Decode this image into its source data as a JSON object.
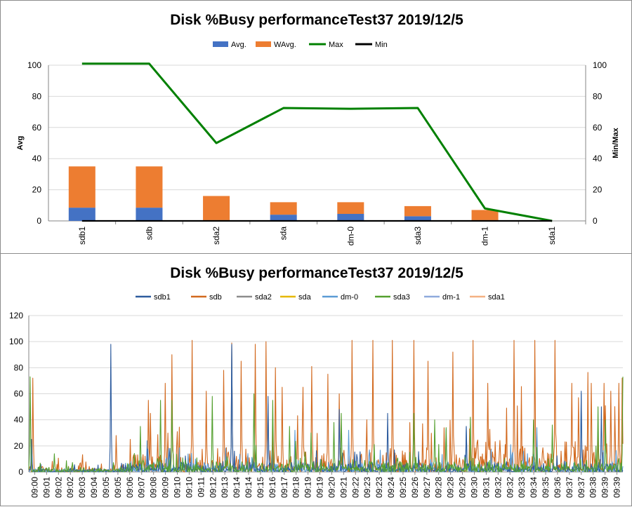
{
  "chart_data": [
    {
      "type": "bar",
      "title": "Disk %Busy performanceTest37  2019/12/5",
      "ylabel": "Avg",
      "y2label": "Min/Max",
      "ylim": [
        0,
        100
      ],
      "y2lim": [
        0,
        100
      ],
      "yticks": [
        "0",
        "20",
        "40",
        "60",
        "80",
        "100"
      ],
      "y2ticks": [
        "0",
        "20",
        "40",
        "60",
        "80",
        "100"
      ],
      "grid": true,
      "legend_position": "top",
      "categories": [
        "sdb1",
        "sdb",
        "sda2",
        "sda",
        "dm-0",
        "sda3",
        "dm-1",
        "sda1"
      ],
      "series": [
        {
          "name": "Avg.",
          "kind": "stacked-bar",
          "color": "#4472C4",
          "values": [
            8.5,
            8.5,
            0.5,
            4,
            4.5,
            3,
            0.5,
            0
          ]
        },
        {
          "name": "WAvg.",
          "kind": "stacked-bar",
          "color": "#ED7D31",
          "values": [
            26.5,
            26.5,
            15.5,
            8,
            7.5,
            6.5,
            6.5,
            0
          ]
        },
        {
          "name": "Max",
          "kind": "line",
          "axis": "secondary",
          "color": "#008000",
          "values": [
            101,
            101,
            50,
            72.5,
            72,
            72.5,
            8,
            0
          ]
        },
        {
          "name": "Min",
          "kind": "line",
          "axis": "secondary",
          "color": "#000000",
          "values": [
            0,
            0,
            0,
            0,
            0,
            0,
            0,
            0
          ]
        }
      ]
    },
    {
      "type": "line",
      "title": "Disk %Busy performanceTest37  2019/12/5",
      "ylim": [
        0,
        120
      ],
      "yticks": [
        "0",
        "20",
        "40",
        "60",
        "80",
        "100",
        "120"
      ],
      "grid": true,
      "legend_position": "top",
      "x": [
        "09:00",
        "09:01",
        "09:02",
        "09:02",
        "09:03",
        "09:04",
        "09:05",
        "09:05",
        "09:06",
        "09:07",
        "09:08",
        "09:09",
        "09:10",
        "09:10",
        "09:11",
        "09:12",
        "09:13",
        "09:14",
        "09:14",
        "09:15",
        "09:16",
        "09:17",
        "09:18",
        "09:19",
        "09:19",
        "09:20",
        "09:21",
        "09:22",
        "09:23",
        "09:23",
        "09:24",
        "09:25",
        "09:26",
        "09:27",
        "09:28",
        "09:28",
        "09:29",
        "09:30",
        "09:31",
        "09:32",
        "09:32",
        "09:33",
        "09:34",
        "09:35",
        "09:36",
        "09:37",
        "09:37",
        "09:38",
        "09:39",
        "09:39"
      ],
      "series": [
        {
          "name": "sdb1",
          "color": "#2E5C9E",
          "peaks": [
            [
              4,
              25
            ],
            [
              122,
              98
            ],
            [
              302,
              98
            ],
            [
              356,
              58
            ],
            [
              462,
              48
            ],
            [
              534,
              45
            ],
            [
              651,
              35
            ],
            [
              822,
              62
            ],
            [
              852,
              50
            ]
          ]
        },
        {
          "name": "sdb",
          "color": "#D2691E",
          "peaks": [
            [
              6,
              72
            ],
            [
              130,
              28
            ],
            [
              178,
              55
            ],
            [
              181,
              45
            ],
            [
              203,
              68
            ],
            [
              213,
              90
            ],
            [
              243,
              101
            ],
            [
              264,
              62
            ],
            [
              290,
              78
            ],
            [
              302,
              99
            ],
            [
              316,
              85
            ],
            [
              337,
              98
            ],
            [
              353,
              100
            ],
            [
              367,
              80
            ],
            [
              377,
              65
            ],
            [
              408,
              65
            ],
            [
              421,
              81
            ],
            [
              445,
              75
            ],
            [
              462,
              60
            ],
            [
              481,
              101
            ],
            [
              512,
              101
            ],
            [
              541,
              101
            ],
            [
              573,
              101
            ],
            [
              594,
              85
            ],
            [
              631,
              92
            ],
            [
              661,
              101
            ],
            [
              683,
              68
            ],
            [
              722,
              101
            ],
            [
              753,
              101
            ],
            [
              783,
              101
            ],
            [
              808,
              68
            ],
            [
              818,
              57
            ],
            [
              837,
              68
            ],
            [
              856,
              68
            ],
            [
              866,
              62
            ],
            [
              878,
              68
            ],
            [
              883,
              72
            ]
          ]
        },
        {
          "name": "sda2",
          "color": "#8C8C8C",
          "peaks": []
        },
        {
          "name": "sda",
          "color": "#E6B800",
          "peaks": []
        },
        {
          "name": "dm-0",
          "color": "#5B9BD5",
          "peaks": [
            [
              4,
              25
            ],
            [
              176,
              24
            ],
            [
              302,
              97
            ],
            [
              356,
              52
            ],
            [
              396,
              32
            ],
            [
              476,
              32
            ],
            [
              621,
              33
            ],
            [
              651,
              35
            ],
            [
              756,
              34
            ],
            [
              822,
              60
            ]
          ]
        },
        {
          "name": "sda3",
          "color": "#54A02F",
          "peaks": [
            [
              2,
              73
            ],
            [
              38,
              14
            ],
            [
              166,
              35
            ],
            [
              196,
              55
            ],
            [
              213,
              55
            ],
            [
              273,
              58
            ],
            [
              335,
              60
            ],
            [
              363,
              55
            ],
            [
              388,
              35
            ],
            [
              420,
              30
            ],
            [
              454,
              38
            ],
            [
              465,
              45
            ],
            [
              573,
              45
            ],
            [
              604,
              40
            ],
            [
              621,
              34
            ],
            [
              657,
              42
            ],
            [
              751,
              40
            ],
            [
              779,
              36
            ],
            [
              847,
              50
            ],
            [
              858,
              40
            ],
            [
              884,
              73
            ]
          ]
        },
        {
          "name": "dm-1",
          "color": "#8FAADC",
          "peaks": []
        },
        {
          "name": "sda1",
          "color": "#F4B183",
          "peaks": []
        }
      ]
    }
  ]
}
